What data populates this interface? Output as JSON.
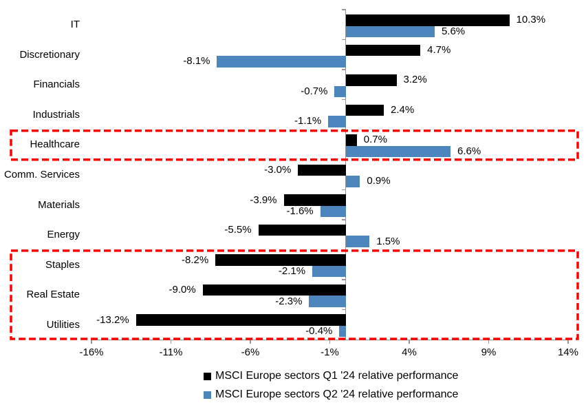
{
  "chart_data": {
    "type": "bar",
    "orientation": "horizontal",
    "title": "",
    "categories": [
      "IT",
      "Discretionary",
      "Financials",
      "Industrials",
      "Healthcare",
      "Comm. Services",
      "Materials",
      "Energy",
      "Staples",
      "Real Estate",
      "Utilities"
    ],
    "series": [
      {
        "name": "MSCI Europe sectors Q1 '24 relative performance",
        "color": "#000000",
        "values": [
          10.3,
          4.7,
          3.2,
          2.4,
          0.7,
          -3.0,
          -3.9,
          -5.5,
          -8.2,
          -9.0,
          -13.2
        ]
      },
      {
        "name": "MSCI Europe sectors Q2 '24 relative performance",
        "color": "#4d86bd",
        "values": [
          5.6,
          -8.1,
          -0.7,
          -1.1,
          6.6,
          0.9,
          -1.6,
          1.5,
          -2.1,
          -2.3,
          -0.4
        ]
      }
    ],
    "x_axis": {
      "min": -16,
      "max": 14,
      "tick_values": [
        -16,
        -11,
        -6,
        -1,
        4,
        9,
        14
      ],
      "tick_labels": [
        "-16%",
        "-11%",
        "-6%",
        "-1%",
        "4%",
        "9%",
        "14%"
      ]
    },
    "data_labels": true,
    "value_label_suffix": "%",
    "grid": false,
    "legend_position": "bottom",
    "axis_color": "#969696",
    "highlight_color": "#ff0000",
    "highlights": [
      {
        "from": "Healthcare",
        "to": "Healthcare",
        "style": "red-dashed-box"
      },
      {
        "from": "Staples",
        "to": "Utilities",
        "style": "red-dashed-box"
      }
    ]
  }
}
